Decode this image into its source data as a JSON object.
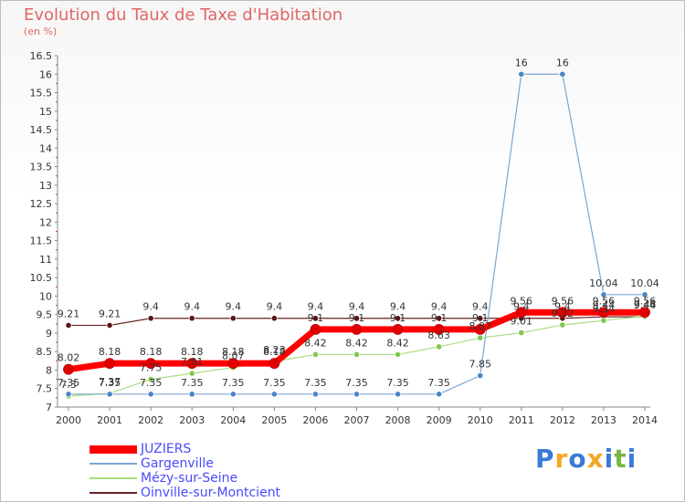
{
  "title": "Evolution du Taux de Taxe d'Habitation",
  "unit": "(en %)",
  "brand": {
    "text": "Proxiti",
    "colors": [
      "#3a7bd5",
      "#f5a623",
      "#3a7bd5",
      "#f5a623",
      "#3a7bd5",
      "#7cb342",
      "#3a7bd5"
    ]
  },
  "chart_data": {
    "type": "line",
    "title": "Evolution du Taux de Taxe d'Habitation",
    "ylabel": "(en %)",
    "xlabel": "",
    "ylim": [
      7,
      16.5
    ],
    "y_ticks": [
      "7",
      "7.5",
      "8",
      "8.5",
      "9",
      "9.5",
      "10",
      "10.5",
      "11",
      "11.5",
      "12",
      "12.5",
      "13",
      "13.5",
      "14",
      "14.5",
      "15",
      "15.5",
      "16",
      "16.5"
    ],
    "grid": false,
    "legend": "bottom-left",
    "categories": [
      "2000",
      "2001",
      "2002",
      "2003",
      "2004",
      "2005",
      "2006",
      "2007",
      "2008",
      "2009",
      "2010",
      "2011",
      "2012",
      "2013",
      "2014"
    ],
    "series": [
      {
        "name": "Oinville-sur-Montcient",
        "color": "#6b2222",
        "point_color": "#5a1515",
        "width": 1.2,
        "values": [
          9.21,
          9.21,
          9.4,
          9.4,
          9.4,
          9.4,
          9.4,
          9.4,
          9.4,
          9.4,
          9.4,
          9.4,
          9.4,
          9.44,
          9.44
        ],
        "labels": [
          "9.21",
          "9.21",
          "9.4",
          "9.4",
          "9.4",
          "9.4",
          "9.4",
          "9.4",
          "9.4",
          "9.4",
          "9.4",
          "9.4",
          "9.4",
          "9.44",
          "9.44"
        ]
      },
      {
        "name": "Mézy-sur-Seine",
        "color": "#a8dc80",
        "point_color": "#7ec850",
        "width": 1.2,
        "values": [
          7.3,
          7.37,
          7.75,
          7.91,
          8.07,
          8.23,
          8.42,
          8.42,
          8.42,
          8.63,
          8.87,
          9.01,
          9.22,
          9.34,
          9.46
        ],
        "labels": [
          "7.3",
          "7.37",
          "7.75",
          "7.91",
          "8.07",
          "8.23",
          "8.42",
          "8.42",
          "8.42",
          "8.63",
          "8.87",
          "9.01",
          "9.22",
          "9.34",
          "9.46"
        ]
      },
      {
        "name": "Gargenville",
        "color": "#7ba7d0",
        "point_color": "#4a86c5",
        "width": 1.2,
        "values": [
          7.35,
          7.35,
          7.35,
          7.35,
          7.35,
          7.35,
          7.35,
          7.35,
          7.35,
          7.35,
          7.85,
          16,
          16,
          10.04,
          10.04
        ],
        "labels": [
          "7.35",
          "7.35",
          "7.35",
          "7.35",
          "7.35",
          "7.35",
          "7.35",
          "7.35",
          "7.35",
          "7.35",
          "7.85",
          "16",
          "16",
          "10.04",
          "10.04"
        ]
      },
      {
        "name": "JUZIERS",
        "color": "#ff0000",
        "point_color": "#e00000",
        "width": 7,
        "values": [
          8.02,
          8.18,
          8.18,
          8.18,
          8.18,
          8.18,
          9.1,
          9.1,
          9.1,
          9.1,
          9.1,
          9.56,
          9.56,
          9.56,
          9.56
        ],
        "labels": [
          "8.02",
          "8.18",
          "8.18",
          "8.18",
          "8.18",
          "8.18",
          "9.1",
          "9.1",
          "9.1",
          "9.1",
          "9.1",
          "9.56",
          "9.56",
          "9.56",
          "9.56"
        ]
      }
    ],
    "legend_order": [
      "JUZIERS",
      "Gargenville",
      "Mézy-sur-Seine",
      "Oinville-sur-Montcient"
    ]
  }
}
